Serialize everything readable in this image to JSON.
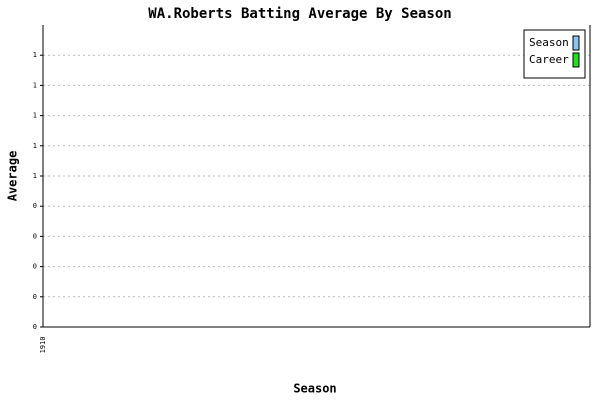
{
  "chart_data": {
    "type": "line",
    "title": "WA.Roberts Batting Average By Season",
    "x_label": "Season",
    "y_label": "Average",
    "categories": [
      "1910"
    ],
    "series": [
      {
        "name": "Season",
        "color": "#8ec3f0",
        "values": [
          null
        ]
      },
      {
        "name": "Career",
        "color": "#22dd22",
        "values": [
          null
        ]
      }
    ],
    "ylim": [
      0,
      1.0
    ],
    "yticks": [
      0,
      {
        "value": 0.1,
        "label": "0"
      },
      {
        "value": 0.2,
        "label": "0"
      },
      {
        "value": 0.3,
        "label": "0"
      },
      {
        "value": 0.4,
        "label": "0"
      },
      {
        "value": 0.5,
        "label": "1"
      },
      {
        "value": 0.6,
        "label": "1"
      },
      {
        "value": 0.7,
        "label": "1"
      },
      {
        "value": 0.8,
        "label": "1"
      },
      {
        "value": 0.9,
        "label": "1"
      }
    ],
    "grid": true,
    "legend": "top-right"
  }
}
